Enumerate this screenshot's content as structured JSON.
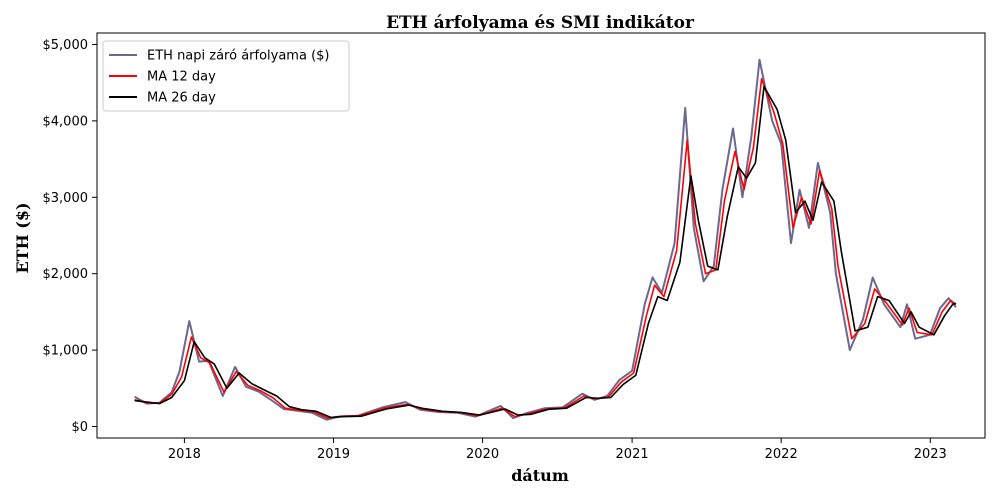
{
  "chart_data": {
    "type": "line",
    "title": "ETH árfolyama és SMI indikátor",
    "xlabel": "dátum",
    "ylabel": "ETH ($)",
    "xlim": [
      "2017-06-01",
      "2023-05-15"
    ],
    "ylim": [
      -150,
      5150
    ],
    "x_ticks": [
      "2018",
      "2019",
      "2020",
      "2021",
      "2022",
      "2023"
    ],
    "y_ticks": [
      0,
      1000,
      2000,
      3000,
      4000,
      5000
    ],
    "y_tick_labels": [
      "$0",
      "$1,000",
      "$2,000",
      "$3,000",
      "$4,000",
      "$5,000"
    ],
    "grid": false,
    "legend_position": "top-left",
    "series": [
      {
        "name": "ETH napi záró árfolyama ($)",
        "color": "#6b6891",
        "x": [
          "2017-09-01",
          "2017-10-01",
          "2017-11-01",
          "2017-12-01",
          "2017-12-20",
          "2018-01-13",
          "2018-02-06",
          "2018-03-01",
          "2018-04-05",
          "2018-05-05",
          "2018-06-01",
          "2018-07-01",
          "2018-08-01",
          "2018-09-01",
          "2018-10-01",
          "2018-11-10",
          "2018-12-15",
          "2019-01-15",
          "2019-03-01",
          "2019-05-01",
          "2019-06-26",
          "2019-08-01",
          "2019-09-15",
          "2019-11-01",
          "2019-12-15",
          "2020-02-14",
          "2020-03-16",
          "2020-04-15",
          "2020-06-01",
          "2020-07-15",
          "2020-09-01",
          "2020-10-01",
          "2020-11-01",
          "2020-12-01",
          "2021-01-01",
          "2021-02-01",
          "2021-02-20",
          "2021-03-15",
          "2021-04-15",
          "2021-05-11",
          "2021-06-01",
          "2021-06-25",
          "2021-07-20",
          "2021-08-10",
          "2021-09-05",
          "2021-09-28",
          "2021-10-20",
          "2021-11-09",
          "2021-12-10",
          "2022-01-01",
          "2022-01-25",
          "2022-02-15",
          "2022-03-10",
          "2022-04-01",
          "2022-05-01",
          "2022-05-15",
          "2022-06-18",
          "2022-07-20",
          "2022-08-13",
          "2022-09-10",
          "2022-10-20",
          "2022-11-05",
          "2022-11-25",
          "2022-12-31",
          "2023-01-25",
          "2023-02-15",
          "2023-03-05"
        ],
        "y": [
          390,
          300,
          310,
          450,
          720,
          1380,
          850,
          860,
          400,
          780,
          520,
          460,
          350,
          230,
          210,
          180,
          90,
          130,
          140,
          250,
          320,
          220,
          190,
          180,
          130,
          270,
          110,
          170,
          240,
          250,
          430,
          350,
          400,
          610,
          730,
          1600,
          1950,
          1750,
          2400,
          4170,
          2600,
          1900,
          2100,
          3100,
          3900,
          3000,
          3800,
          4800,
          4000,
          3700,
          2400,
          3100,
          2600,
          3450,
          2800,
          2000,
          1000,
          1400,
          1950,
          1600,
          1300,
          1600,
          1150,
          1200,
          1550,
          1680,
          1560
        ]
      },
      {
        "name": "MA 12 day",
        "color": "#ff0000",
        "x": [
          "2017-09-01",
          "2017-10-01",
          "2017-11-01",
          "2017-12-01",
          "2017-12-25",
          "2018-01-18",
          "2018-02-10",
          "2018-03-05",
          "2018-04-08",
          "2018-05-08",
          "2018-06-05",
          "2018-07-05",
          "2018-08-05",
          "2018-09-05",
          "2018-10-05",
          "2018-11-15",
          "2018-12-18",
          "2019-01-20",
          "2019-03-05",
          "2019-05-05",
          "2019-06-30",
          "2019-08-05",
          "2019-09-20",
          "2019-11-05",
          "2019-12-20",
          "2020-02-18",
          "2020-03-20",
          "2020-04-20",
          "2020-06-05",
          "2020-07-20",
          "2020-09-05",
          "2020-10-05",
          "2020-11-05",
          "2020-12-05",
          "2021-01-05",
          "2021-02-05",
          "2021-02-25",
          "2021-03-20",
          "2021-04-20",
          "2021-05-16",
          "2021-06-05",
          "2021-06-30",
          "2021-07-25",
          "2021-08-15",
          "2021-09-10",
          "2021-10-02",
          "2021-10-25",
          "2021-11-14",
          "2021-12-15",
          "2022-01-05",
          "2022-01-30",
          "2022-02-20",
          "2022-03-15",
          "2022-04-05",
          "2022-05-05",
          "2022-05-20",
          "2022-06-23",
          "2022-07-25",
          "2022-08-18",
          "2022-09-15",
          "2022-10-25",
          "2022-11-10",
          "2022-11-30",
          "2023-01-05",
          "2023-01-30",
          "2023-02-20",
          "2023-03-05"
        ],
        "y": [
          350,
          310,
          305,
          420,
          650,
          1170,
          900,
          830,
          450,
          720,
          540,
          470,
          380,
          240,
          215,
          190,
          110,
          135,
          140,
          240,
          290,
          230,
          195,
          185,
          140,
          240,
          130,
          165,
          230,
          245,
          400,
          360,
          390,
          580,
          700,
          1450,
          1850,
          1700,
          2300,
          3750,
          2650,
          2000,
          2050,
          2950,
          3600,
          3100,
          3650,
          4550,
          4100,
          3700,
          2600,
          3000,
          2650,
          3350,
          2850,
          2100,
          1150,
          1350,
          1800,
          1620,
          1330,
          1550,
          1230,
          1200,
          1500,
          1650,
          1600
        ]
      },
      {
        "name": "MA 26 day",
        "color": "#000000",
        "x": [
          "2017-09-01",
          "2017-10-01",
          "2017-11-01",
          "2017-12-01",
          "2018-01-01",
          "2018-01-25",
          "2018-02-20",
          "2018-03-15",
          "2018-04-15",
          "2018-05-15",
          "2018-06-15",
          "2018-07-15",
          "2018-08-15",
          "2018-09-15",
          "2018-10-15",
          "2018-11-20",
          "2018-12-25",
          "2019-01-25",
          "2019-03-10",
          "2019-05-10",
          "2019-07-05",
          "2019-08-10",
          "2019-09-25",
          "2019-11-10",
          "2019-12-25",
          "2020-02-25",
          "2020-03-28",
          "2020-04-28",
          "2020-06-10",
          "2020-07-25",
          "2020-09-10",
          "2020-10-10",
          "2020-11-10",
          "2020-12-10",
          "2021-01-10",
          "2021-02-10",
          "2021-03-05",
          "2021-03-28",
          "2021-04-28",
          "2021-05-25",
          "2021-06-12",
          "2021-07-05",
          "2021-07-30",
          "2021-08-22",
          "2021-09-18",
          "2021-10-08",
          "2021-10-30",
          "2021-11-20",
          "2021-12-22",
          "2022-01-12",
          "2022-02-05",
          "2022-02-28",
          "2022-03-20",
          "2022-04-10",
          "2022-05-10",
          "2022-05-28",
          "2022-07-01",
          "2022-08-01",
          "2022-08-25",
          "2022-09-22",
          "2022-10-30",
          "2022-11-15",
          "2022-12-05",
          "2023-01-10",
          "2023-02-05",
          "2023-02-25",
          "2023-03-05"
        ],
        "y": [
          340,
          320,
          300,
          380,
          600,
          1110,
          900,
          820,
          500,
          700,
          560,
          480,
          400,
          260,
          220,
          200,
          120,
          130,
          135,
          230,
          280,
          235,
          200,
          185,
          150,
          230,
          150,
          160,
          225,
          240,
          380,
          370,
          380,
          550,
          670,
          1350,
          1700,
          1650,
          2150,
          3280,
          2700,
          2100,
          2050,
          2750,
          3400,
          3250,
          3450,
          4450,
          4150,
          3750,
          2800,
          2950,
          2700,
          3200,
          2950,
          2300,
          1250,
          1300,
          1700,
          1650,
          1350,
          1500,
          1300,
          1200,
          1450,
          1600,
          1610
        ]
      }
    ]
  }
}
